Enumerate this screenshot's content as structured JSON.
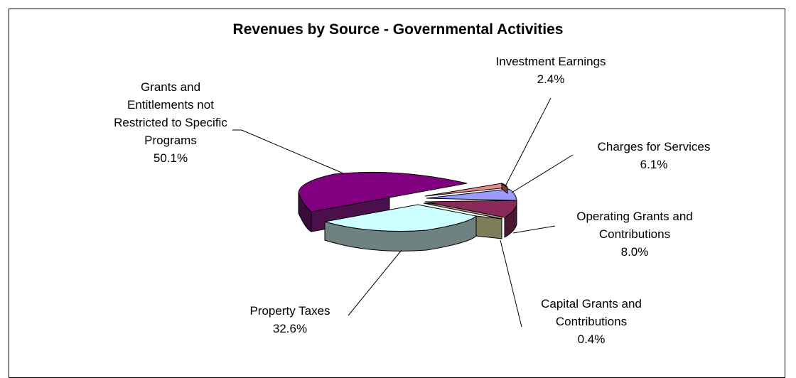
{
  "chart_data": {
    "type": "pie",
    "title": "Revenues by Source - Governmental Activities",
    "slices": [
      {
        "label_lines": [
          "Investment Earnings",
          "2.4%"
        ],
        "value": 2.4,
        "percent": "2.4%",
        "color": "#e88c8c"
      },
      {
        "label_lines": [
          "Charges for Services",
          "6.1%"
        ],
        "value": 6.1,
        "percent": "6.1%",
        "color": "#9b9bff"
      },
      {
        "label_lines": [
          "Operating Grants and",
          "Contributions",
          "8.0%"
        ],
        "value": 8.0,
        "percent": "8.0%",
        "color": "#8a2a5a"
      },
      {
        "label_lines": [
          "Capital Grants and",
          "Contributions",
          "0.4%"
        ],
        "value": 0.4,
        "percent": "0.4%",
        "color": "#a0a080"
      },
      {
        "label_lines": [
          "Property Taxes",
          "32.6%"
        ],
        "value": 32.6,
        "percent": "32.6%",
        "color": "#ccffff"
      },
      {
        "label_lines": [
          "Grants and",
          "Entitlements not",
          "Restricted to Specific",
          "Programs",
          "50.1%"
        ],
        "value": 50.1,
        "percent": "50.1%",
        "color": "#800080"
      }
    ],
    "legend": "none",
    "grid": false
  }
}
